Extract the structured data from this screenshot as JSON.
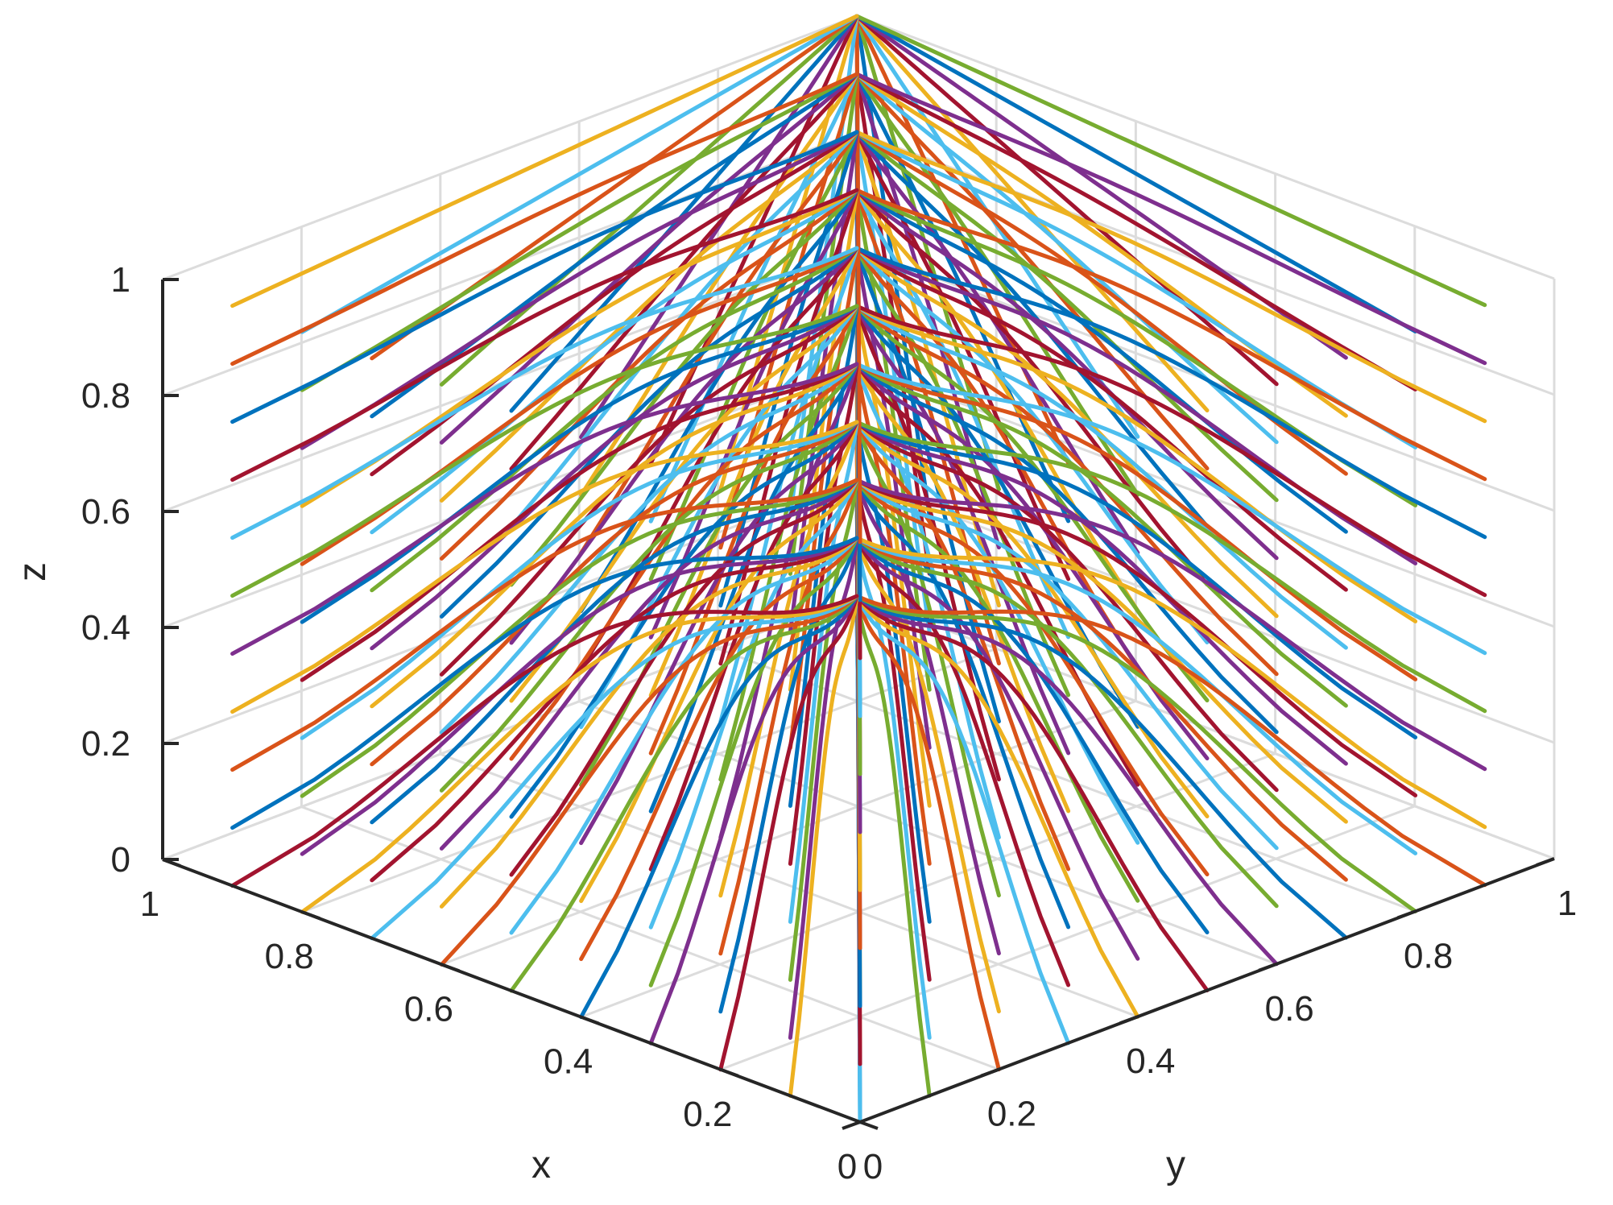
{
  "chart_data": {
    "type": "line",
    "subtype": "3d-trajectories",
    "title": "",
    "xlabel": "x",
    "ylabel": "y",
    "zlabel": "z",
    "xlim": [
      0,
      1
    ],
    "ylim": [
      0,
      1
    ],
    "zlim": [
      0,
      1
    ],
    "x_ticks": [
      "0",
      "0.2",
      "0.4",
      "0.6",
      "0.8",
      "1"
    ],
    "y_ticks": [
      "0",
      "0.2",
      "0.4",
      "0.6",
      "0.8",
      "1"
    ],
    "z_ticks": [
      "0",
      "0.2",
      "0.4",
      "0.6",
      "0.8",
      "1"
    ],
    "grid": true,
    "legend": "none",
    "converge_point": {
      "x": 1,
      "y": 1,
      "z": 1
    },
    "description_of_series": "Many trajectories starting on the planes x=0 and y=0 converging toward (1,1,z) along the left vertical edge; grid of start points over z in [0,1].",
    "colors": [
      "#0072BD",
      "#D95319",
      "#EDB120",
      "#7E2F8E",
      "#77AC30",
      "#4DBEEE",
      "#A2142F"
    ],
    "series": [
      {
        "start_plane": "x=0",
        "y_starts": [
          0.0,
          0.1,
          0.2,
          0.3,
          0.4,
          0.5,
          0.6,
          0.7,
          0.8,
          0.9
        ],
        "z_starts": [
          0.0,
          0.1,
          0.2,
          0.3,
          0.4,
          0.5,
          0.6,
          0.7,
          0.8,
          0.9,
          1.0
        ]
      },
      {
        "start_plane": "y=0",
        "x_starts": [
          0.0,
          0.1,
          0.2,
          0.3,
          0.4,
          0.5,
          0.6,
          0.7,
          0.8,
          0.9
        ],
        "z_starts": [
          0.0,
          0.1,
          0.2,
          0.3,
          0.4,
          0.5,
          0.6,
          0.7,
          0.8,
          0.9,
          1.0
        ]
      }
    ]
  }
}
